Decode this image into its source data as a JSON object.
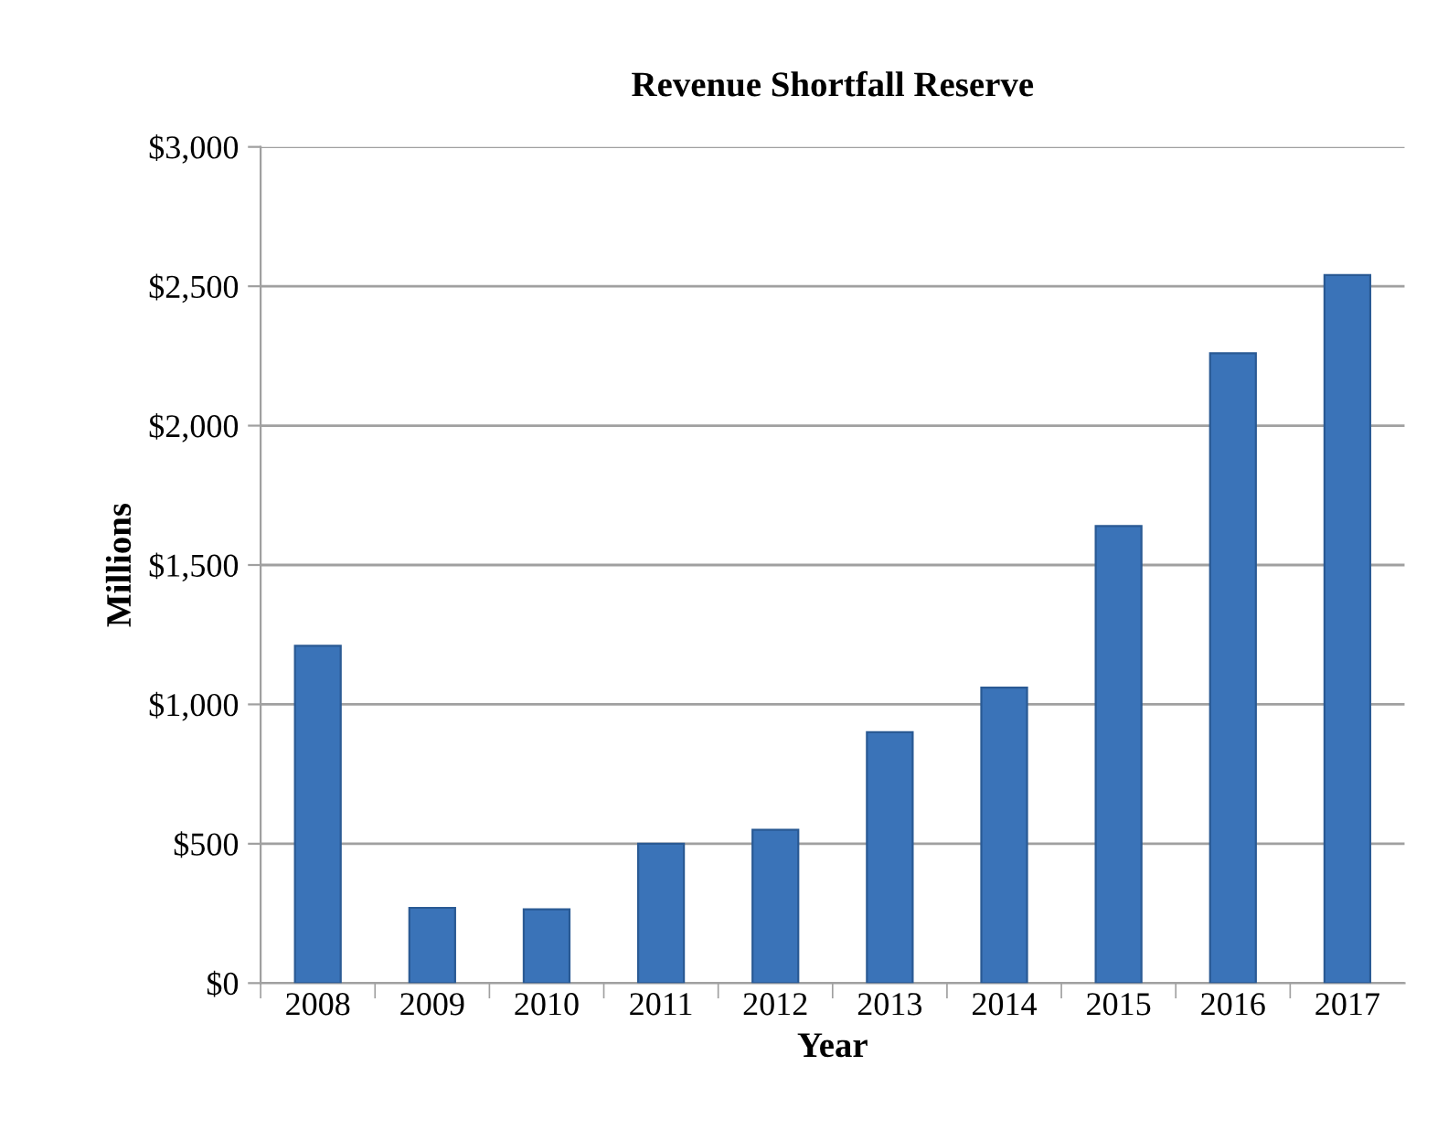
{
  "chart_data": {
    "type": "bar",
    "title": "Revenue Shortfall Reserve",
    "xlabel": "Year",
    "ylabel": "Millions",
    "categories": [
      "2008",
      "2009",
      "2010",
      "2011",
      "2012",
      "2013",
      "2014",
      "2015",
      "2016",
      "2017"
    ],
    "values": [
      1210,
      270,
      265,
      500,
      550,
      900,
      1060,
      1640,
      2260,
      2540
    ],
    "color": "#3a73b8",
    "ylim": [
      0,
      3000
    ],
    "yticks": [
      {
        "value": 0,
        "label": "$0"
      },
      {
        "value": 500,
        "label": "$500"
      },
      {
        "value": 1000,
        "label": "$1,000"
      },
      {
        "value": 1500,
        "label": "$1,500"
      },
      {
        "value": 2000,
        "label": "$2,000"
      },
      {
        "value": 2500,
        "label": "$2,500"
      },
      {
        "value": 3000,
        "label": "$3,000"
      }
    ],
    "grid": "y"
  }
}
